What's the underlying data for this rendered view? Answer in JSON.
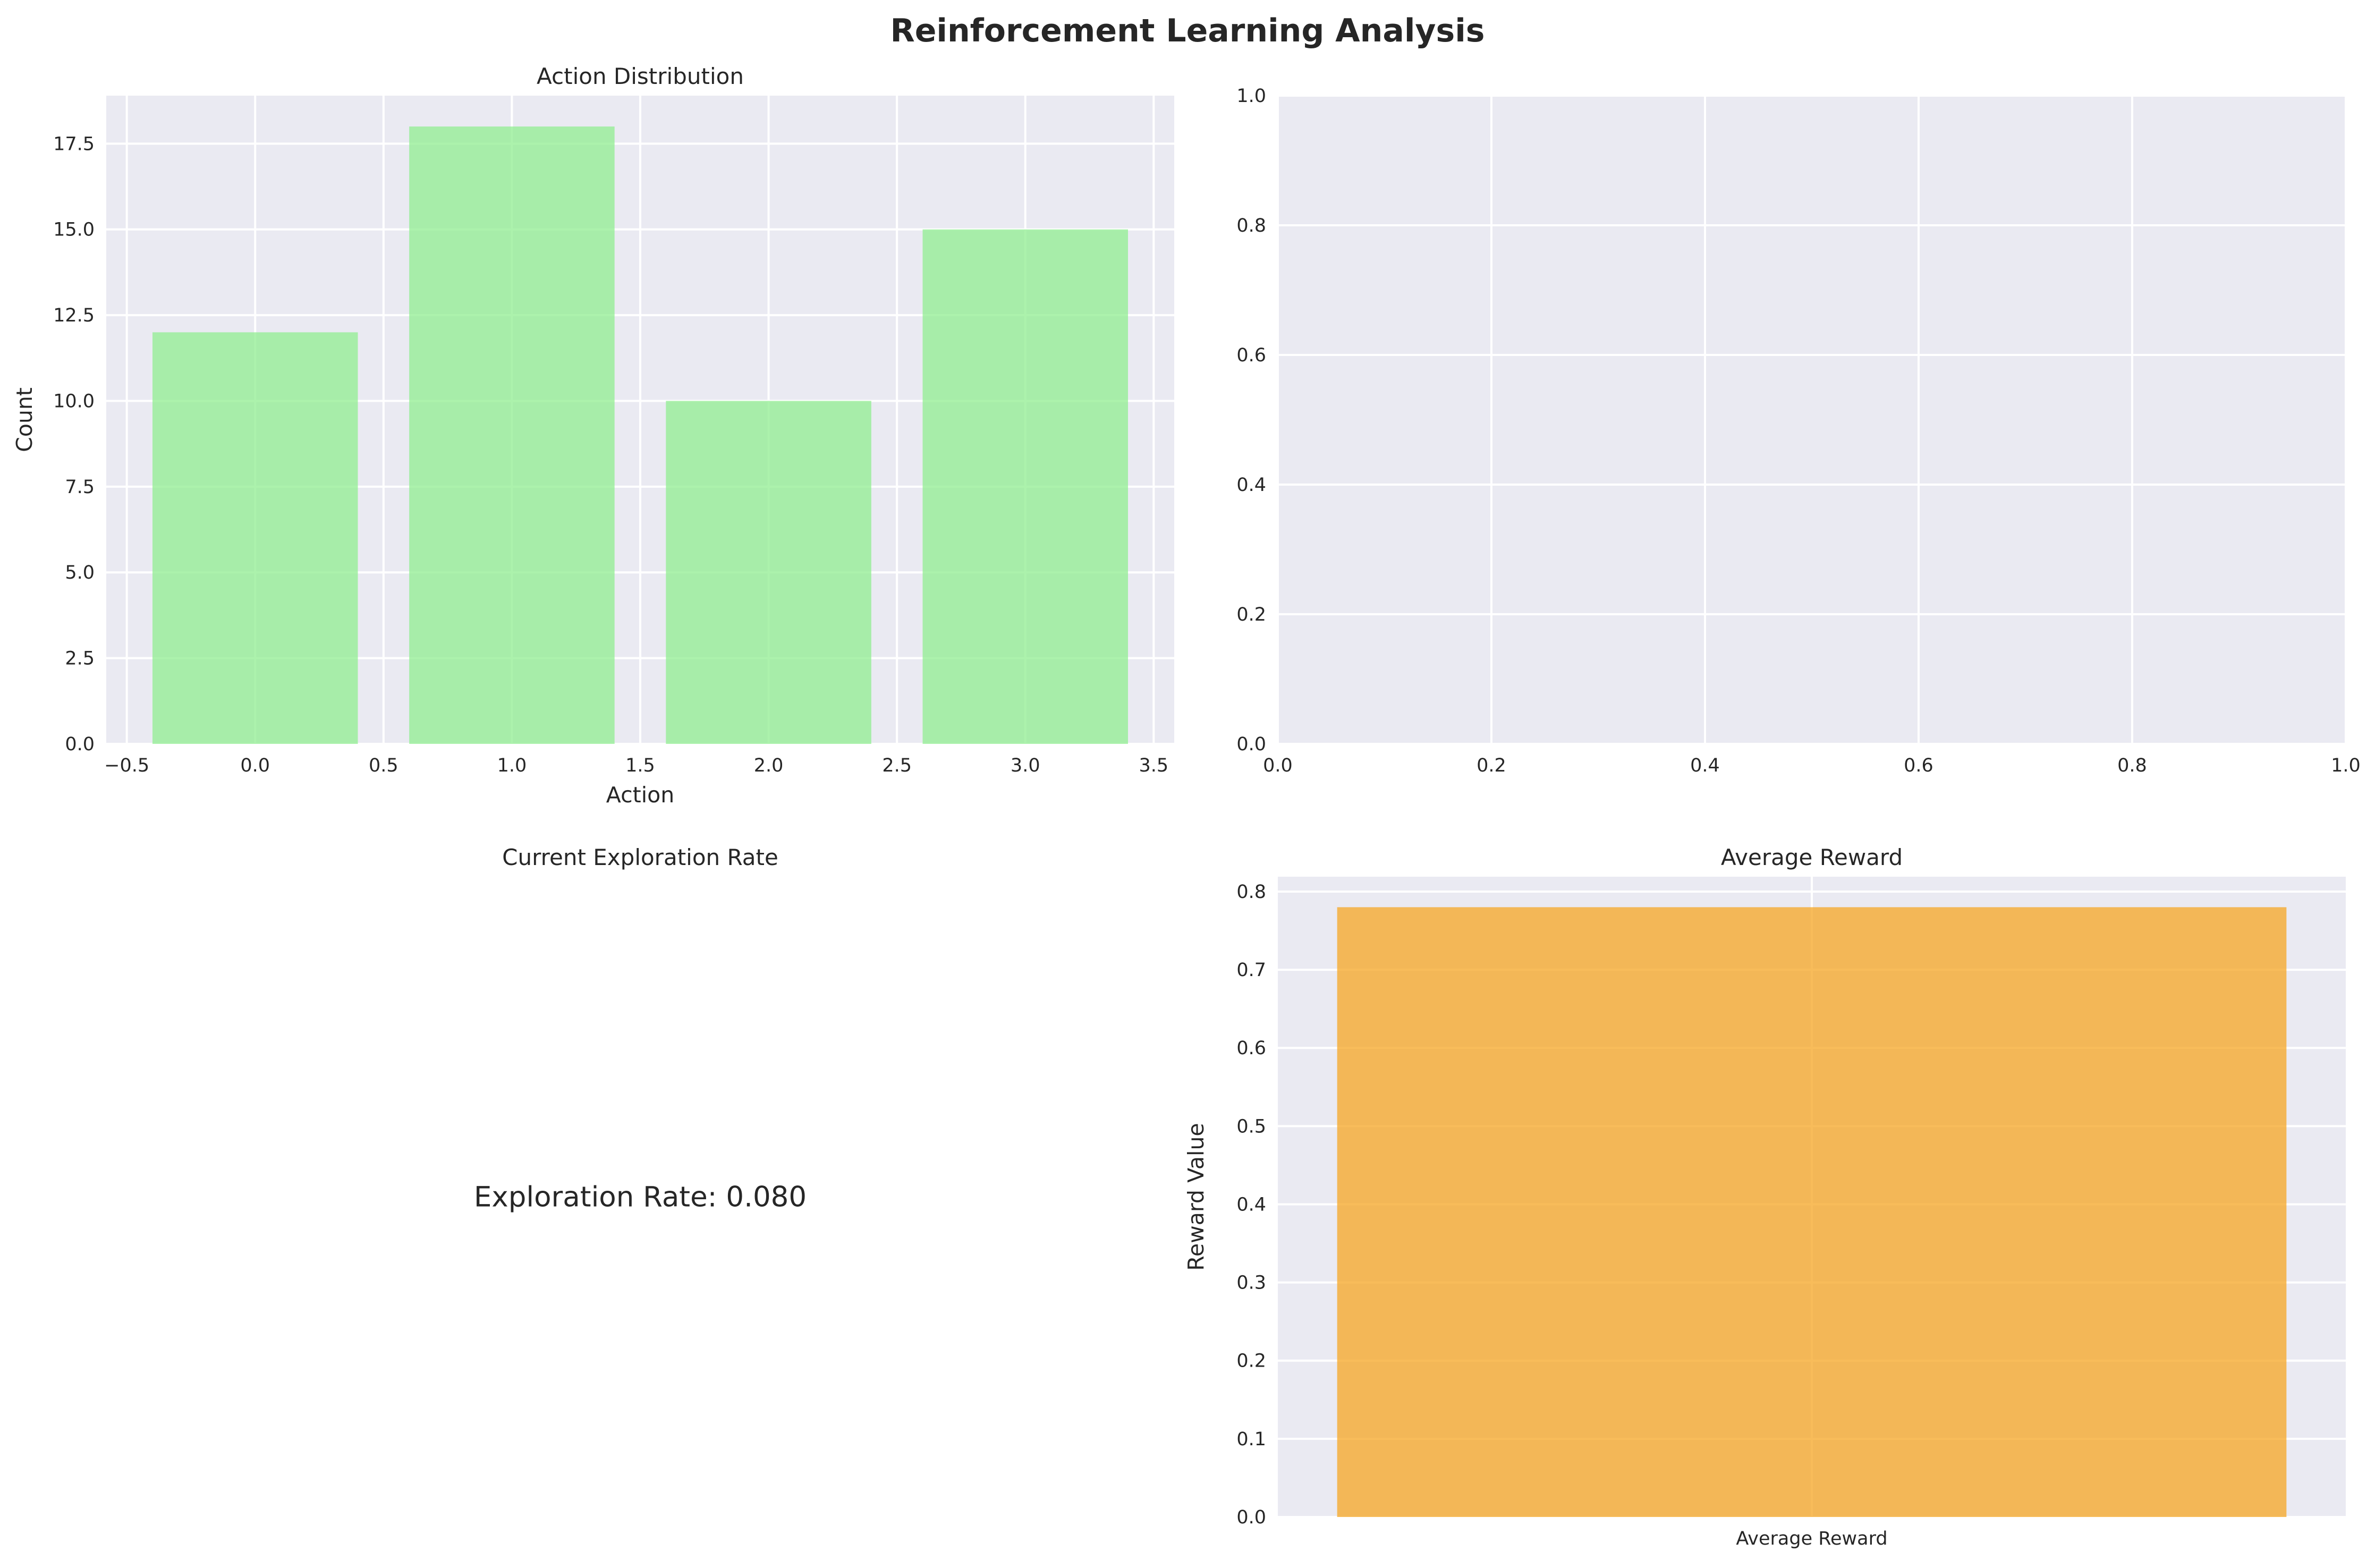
{
  "figure": {
    "title": "Reinforcement Learning Analysis",
    "background": "#ffffff",
    "axes_background": "#eaeaf2"
  },
  "chart_data": [
    {
      "id": "action-distribution",
      "type": "bar",
      "title": "Action Distribution",
      "xlabel": "Action",
      "ylabel": "Count",
      "x": [
        0,
        1,
        2,
        3
      ],
      "values": [
        12,
        18,
        10,
        15
      ],
      "bar_width": 0.8,
      "xlim": [
        -0.58,
        3.58
      ],
      "ylim": [
        0,
        18.9
      ],
      "xticks": [
        -0.5,
        0.0,
        0.5,
        1.0,
        1.5,
        2.0,
        2.5,
        3.0,
        3.5
      ],
      "xtick_labels": [
        "−0.5",
        "0.0",
        "0.5",
        "1.0",
        "1.5",
        "2.0",
        "2.5",
        "3.0",
        "3.5"
      ],
      "yticks": [
        0.0,
        2.5,
        5.0,
        7.5,
        10.0,
        12.5,
        15.0,
        17.5
      ],
      "ytick_labels": [
        "0.0",
        "2.5",
        "5.0",
        "7.5",
        "10.0",
        "12.5",
        "15.0",
        "17.5"
      ],
      "color": "#90ee90",
      "grid": true
    },
    {
      "id": "empty-axes",
      "type": "line",
      "title": "",
      "xlabel": "",
      "ylabel": "",
      "series": [],
      "xlim": [
        0,
        1
      ],
      "ylim": [
        0,
        1
      ],
      "xticks": [
        0.0,
        0.2,
        0.4,
        0.6,
        0.8,
        1.0
      ],
      "xtick_labels": [
        "0.0",
        "0.2",
        "0.4",
        "0.6",
        "0.8",
        "1.0"
      ],
      "yticks": [
        0.0,
        0.2,
        0.4,
        0.6,
        0.8,
        1.0
      ],
      "ytick_labels": [
        "0.0",
        "0.2",
        "0.4",
        "0.6",
        "0.8",
        "1.0"
      ],
      "grid": true
    },
    {
      "id": "exploration-rate",
      "type": "table",
      "title": "Current Exploration Rate",
      "text": "Exploration Rate: 0.080",
      "value": 0.08,
      "axis_visible": false
    },
    {
      "id": "average-reward",
      "type": "bar",
      "title": "Average Reward",
      "xlabel": "",
      "ylabel": "Reward Value",
      "categories": [
        "Average Reward"
      ],
      "values": [
        0.78
      ],
      "bar_width": 0.8,
      "xlim": [
        -0.45,
        0.45
      ],
      "ylim": [
        0,
        0.819
      ],
      "yticks": [
        0.0,
        0.1,
        0.2,
        0.3,
        0.4,
        0.5,
        0.6,
        0.7,
        0.8
      ],
      "ytick_labels": [
        "0.0",
        "0.1",
        "0.2",
        "0.3",
        "0.4",
        "0.5",
        "0.6",
        "0.7",
        "0.8"
      ],
      "color": "#f5a623",
      "grid": true
    }
  ]
}
